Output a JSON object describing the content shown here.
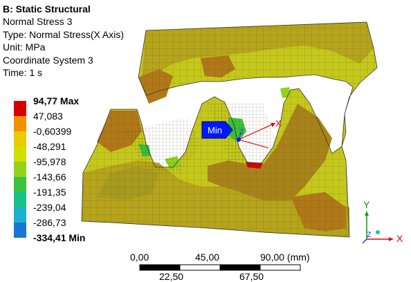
{
  "header": {
    "title": "B: Static Structural",
    "line1": "Normal Stress 3",
    "line2": "Type: Normal Stress(X Axis)",
    "line3": "Unit: MPa",
    "line4": "Coordinate System 3",
    "line5": "Time: 1 s"
  },
  "legend": {
    "labels": [
      "94,77 Max",
      "47,083",
      "-0,60399",
      "-48,291",
      "-95,978",
      "-143,66",
      "-191,35",
      "-239,04",
      "-286,73",
      "-334,41 Min"
    ],
    "colors": [
      "#d70000",
      "#f39100",
      "#e7cc00",
      "#cfe000",
      "#92d21c",
      "#3cc23c",
      "#19c08a",
      "#1ab2cc",
      "#1a76d4",
      "#0000ff"
    ]
  },
  "min_marker": {
    "label": "Min"
  },
  "probe_axes": {
    "x_label": "X",
    "z_label": "Z"
  },
  "scale_bar": {
    "top_labels": [
      "0,00",
      "45,00",
      "90,00 (mm)"
    ],
    "bottom_labels": [
      "22,50",
      "67,50"
    ]
  },
  "triad": {
    "x": "X",
    "y": "Y",
    "z": "Z"
  },
  "colors": {
    "olive": "#a79a1f",
    "brown": "#b07818",
    "yellowgreen": "#c5c81c"
  }
}
